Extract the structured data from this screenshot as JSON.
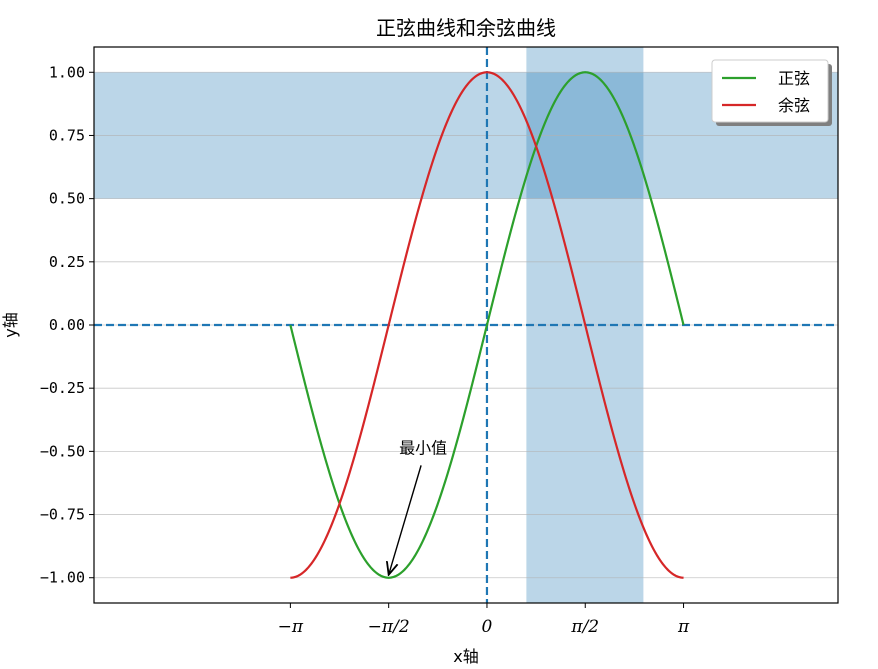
{
  "chart_data": {
    "type": "line",
    "title": "正弦曲线和余弦曲线",
    "xlabel": "x轴",
    "ylabel": "y轴",
    "xlim": [
      -6.28,
      5.61
    ],
    "ylim": [
      -1.1,
      1.1
    ],
    "x_ticks": [
      {
        "value": -3.14159,
        "label": "−π"
      },
      {
        "value": -1.5708,
        "label": "−π/2"
      },
      {
        "value": 0,
        "label": "0"
      },
      {
        "value": 1.5708,
        "label": "π/2"
      },
      {
        "value": 3.14159,
        "label": "π"
      }
    ],
    "y_ticks": [
      {
        "value": -1.0,
        "label": "−1.00"
      },
      {
        "value": -0.75,
        "label": "−0.75"
      },
      {
        "value": -0.5,
        "label": "−0.50"
      },
      {
        "value": -0.25,
        "label": "−0.25"
      },
      {
        "value": 0.0,
        "label": "0.00"
      },
      {
        "value": 0.25,
        "label": "0.25"
      },
      {
        "value": 0.5,
        "label": "0.50"
      },
      {
        "value": 0.75,
        "label": "0.75"
      },
      {
        "value": 1.0,
        "label": "1.00"
      }
    ],
    "grid": {
      "y": true,
      "x": false
    },
    "series": [
      {
        "name": "正弦",
        "function": "sin",
        "x_range": [
          -3.14159,
          3.14159
        ],
        "color": "#2ca02c"
      },
      {
        "name": "余弦",
        "function": "cos",
        "x_range": [
          -3.14159,
          3.14159
        ],
        "color": "#d62728"
      }
    ],
    "reference_lines": [
      {
        "orientation": "horizontal",
        "value": 0,
        "style": "dashed",
        "color": "#1f77b4"
      },
      {
        "orientation": "vertical",
        "value": 0,
        "style": "dashed",
        "color": "#1f77b4"
      }
    ],
    "shaded_spans": [
      {
        "orientation": "horizontal",
        "from": 0.5,
        "to": 1.0,
        "color": "#1f77b4",
        "alpha": 0.3
      },
      {
        "orientation": "vertical",
        "from": 0.63,
        "to": 2.5,
        "color": "#1f77b4",
        "alpha": 0.3
      }
    ],
    "annotations": [
      {
        "text": "最小值",
        "text_at": [
          -1.5,
          -0.5
        ],
        "arrow_to": [
          -1.5708,
          -1.0
        ]
      }
    ],
    "legend": {
      "position": "top-right",
      "shadow": true
    }
  }
}
